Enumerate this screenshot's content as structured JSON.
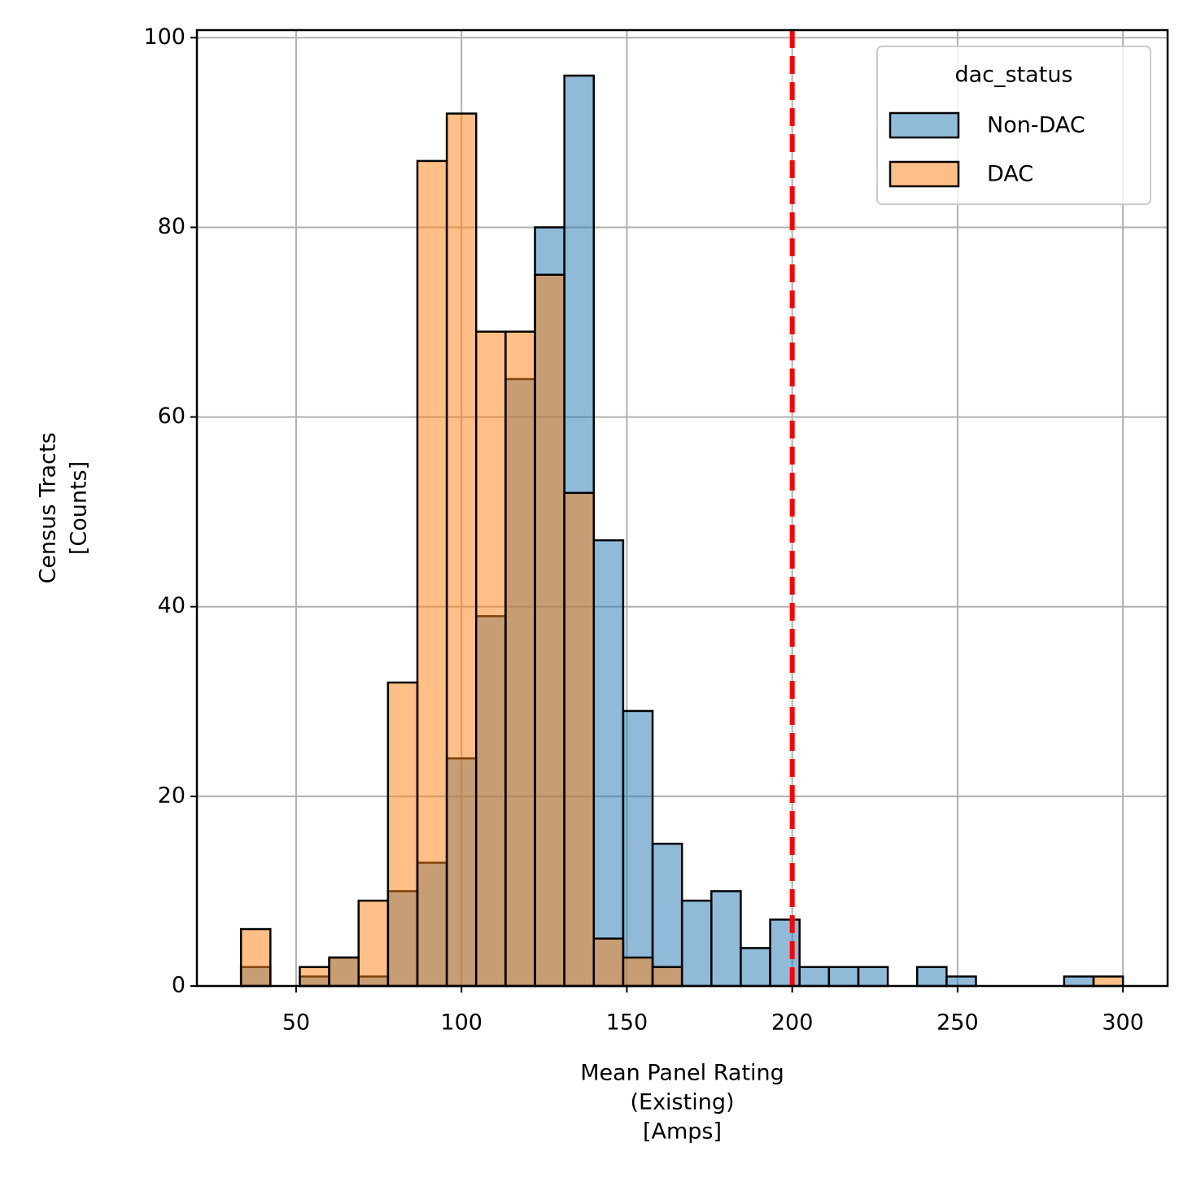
{
  "chart_data": {
    "type": "histogram",
    "xlabel": [
      "Mean Panel Rating",
      "(Existing)",
      "[Amps]"
    ],
    "ylabel": [
      "Census Tracts",
      "[Counts]"
    ],
    "bins": [
      33.33,
      42.22,
      51.11,
      60,
      68.89,
      77.78,
      86.67,
      95.56,
      104.44,
      113.33,
      122.22,
      131.11,
      140,
      148.89,
      157.78,
      166.67,
      175.56,
      184.44,
      193.33,
      202.22,
      211.11,
      220,
      228.89,
      237.78,
      246.67,
      255.56,
      264.44,
      273.33,
      282.22,
      291.11,
      300
    ],
    "series": [
      {
        "name": "Non-DAC",
        "color": "#1f77b4",
        "values": [
          2,
          0,
          1,
          3,
          1,
          10,
          13,
          24,
          39,
          64,
          80,
          96,
          47,
          29,
          15,
          9,
          10,
          4,
          7,
          2,
          2,
          2,
          0,
          2,
          1,
          0,
          0,
          0,
          1,
          0
        ]
      },
      {
        "name": "DAC",
        "color": "#ff7f0e",
        "values": [
          6,
          0,
          2,
          3,
          9,
          32,
          87,
          92,
          69,
          69,
          75,
          52,
          5,
          3,
          2,
          0,
          0,
          0,
          0,
          0,
          0,
          0,
          0,
          0,
          0,
          0,
          0,
          0,
          0,
          1
        ]
      }
    ],
    "legend_title": "dac_status",
    "legend": "upper right",
    "vline": {
      "x": 200,
      "color": "#ff0000"
    },
    "xlim": [
      20,
      313.5
    ],
    "xticks": [
      50,
      100,
      150,
      200,
      250,
      300
    ],
    "ylim": [
      0,
      100.8
    ],
    "yticks": [
      0,
      20,
      40,
      60,
      80,
      100
    ],
    "grid": true
  }
}
